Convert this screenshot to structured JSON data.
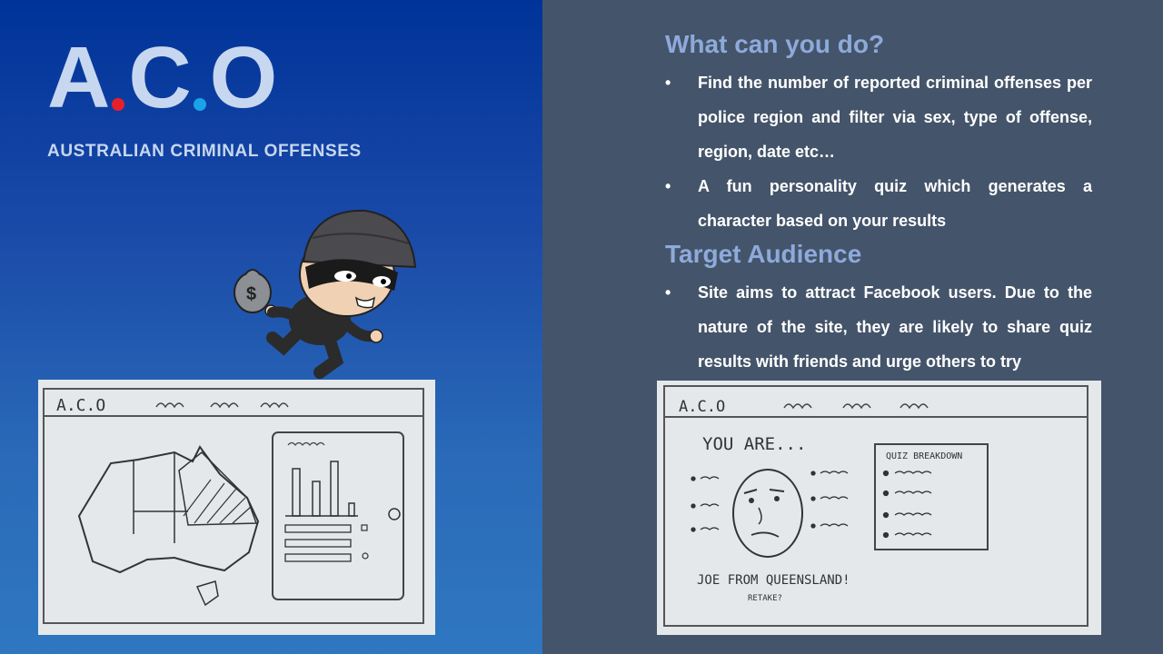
{
  "logo": {
    "letter1": "A",
    "letter2": "C",
    "letter3": "O",
    "dot1_color": "#e8202a",
    "dot2_color": "#1aa3e8"
  },
  "subtitle": "AUSTRALIAN CRIMINAL OFFENSES",
  "section1": {
    "heading": "What can you do?",
    "bullets": [
      "Find the number of reported criminal offenses per police region and filter via sex, type of offense, region, date etc…",
      "A fun personality quiz which generates a character based on your results"
    ]
  },
  "section2": {
    "heading": "Target Audience",
    "bullets": [
      "Site aims to attract Facebook users. Due to the nature of the site, they are likely to share quiz results with friends and urge others to try"
    ]
  },
  "bullet_symbol": "•",
  "sketch_left": {
    "header": "A.C.O"
  },
  "sketch_right": {
    "header": "A.C.O",
    "title": "YOU ARE...",
    "panel_title": "QUIZ BREAKDOWN",
    "result": "JOE FROM QUEENSLAND!",
    "retake": "RETAKE?"
  },
  "colors": {
    "left_bg": "#1a4aa8",
    "right_bg": "#44546a",
    "heading": "#8eaadb",
    "logo": "#c7d7ef"
  }
}
